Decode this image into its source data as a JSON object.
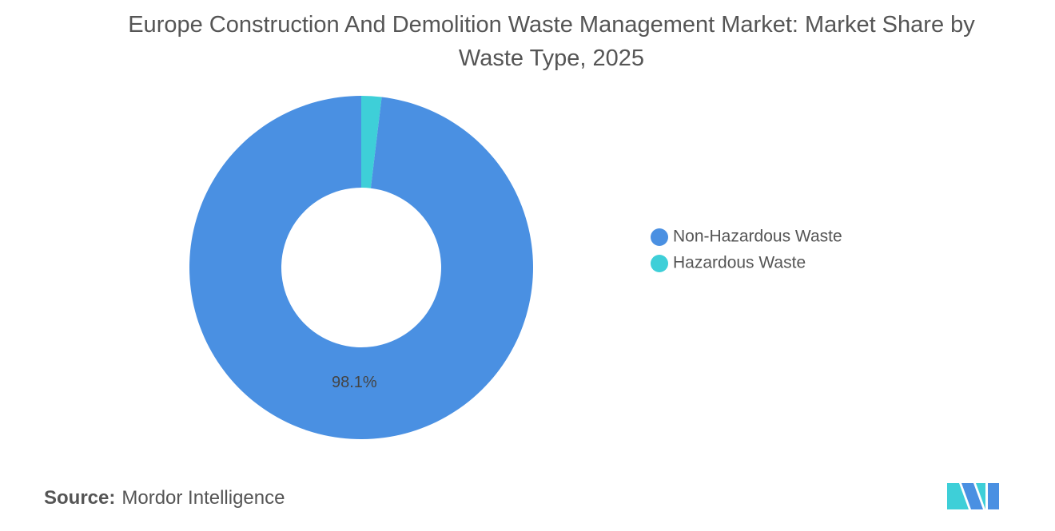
{
  "chart_data": {
    "type": "donut",
    "title": "Europe Construction And Demolition Waste Management Market: Market Share by Waste Type, 2025",
    "categories": [
      "Non-Hazardous Waste",
      "Hazardous Waste"
    ],
    "values": [
      98.1,
      1.9
    ],
    "value_labels": [
      "98.1%",
      null
    ],
    "colors": [
      "#4a90e2",
      "#3ecfd8"
    ],
    "legend": "right",
    "source_label": "Source:",
    "source": "Mordor Intelligence"
  }
}
